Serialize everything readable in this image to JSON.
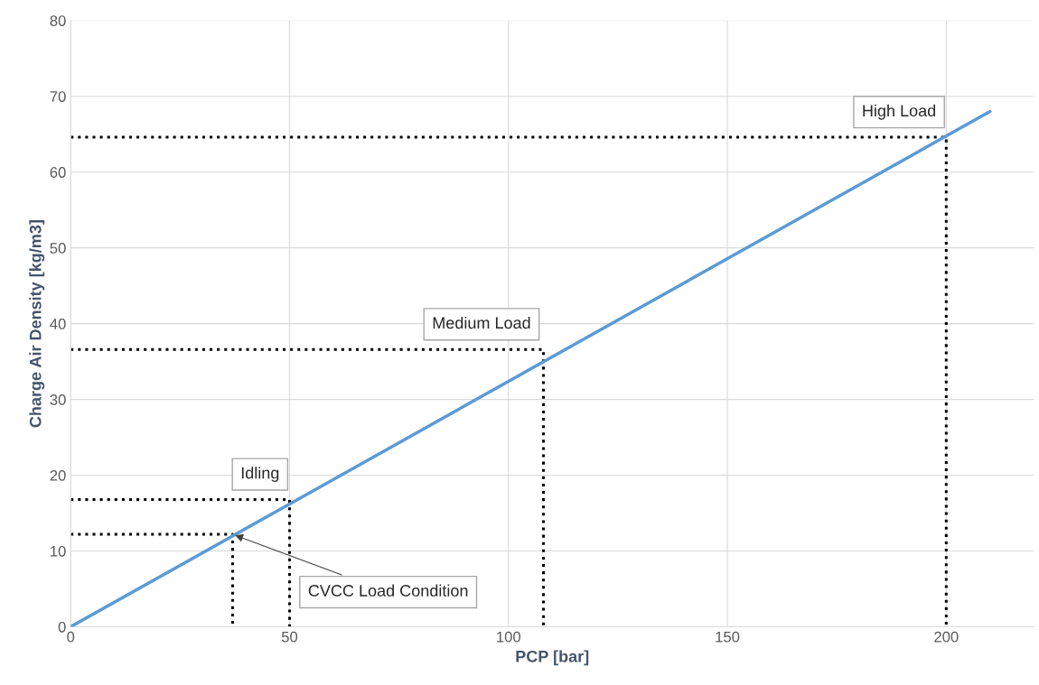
{
  "chart_data": {
    "type": "line",
    "xlabel": "PCP [bar]",
    "ylabel": "Charge Air Density [kg/m3]",
    "xlim": [
      0,
      220
    ],
    "xticks": [
      0,
      50,
      100,
      150,
      200
    ],
    "ylim": [
      0,
      80
    ],
    "yticks": [
      0,
      10,
      20,
      30,
      40,
      50,
      60,
      70,
      80
    ],
    "grid": true,
    "series": [
      {
        "color": "#5b9bd5",
        "x": [
          0,
          210
        ],
        "values": [
          0,
          68
        ],
        "line_style": "solid"
      },
      {
        "color": "#000000",
        "x": [
          0,
          37,
          37
        ],
        "values": [
          12.2,
          12.2,
          0
        ],
        "line_style": "dotted"
      },
      {
        "color": "#000000",
        "x": [
          0,
          50,
          50
        ],
        "values": [
          16.8,
          16.8,
          0
        ],
        "line_style": "dotted"
      },
      {
        "color": "#000000",
        "x": [
          0,
          108,
          108
        ],
        "values": [
          36.6,
          36.6,
          0
        ],
        "line_style": "dotted"
      },
      {
        "color": "#000000",
        "x": [
          0,
          200,
          200
        ],
        "values": [
          64.6,
          64.6,
          0
        ],
        "line_style": "dotted"
      }
    ],
    "annotations": [
      {
        "text": "High Load",
        "x": 200,
        "y": 64.6
      },
      {
        "text": "Medium Load",
        "x": 108,
        "y": 36.6
      },
      {
        "text": "Idling",
        "x": 50,
        "y": 16.8
      },
      {
        "text": "CVCC Load Condition",
        "x": 37,
        "y": 12.2
      }
    ]
  }
}
